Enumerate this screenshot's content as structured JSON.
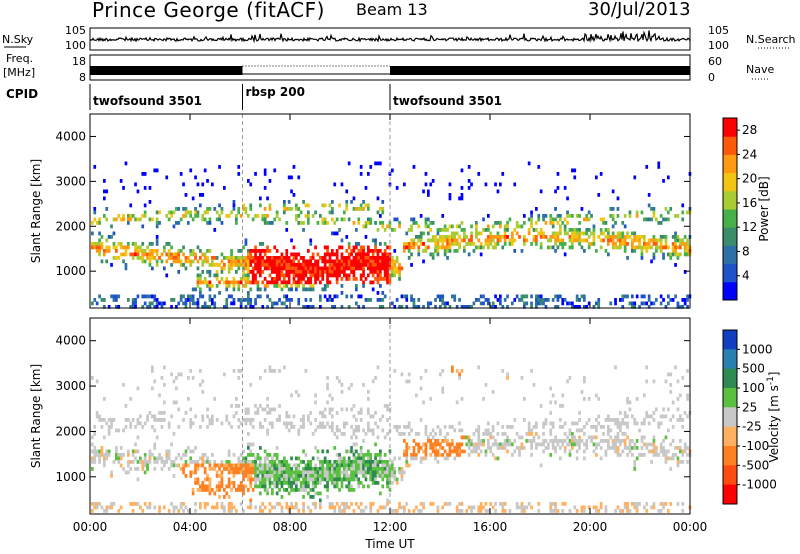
{
  "header": {
    "site": "Prince George (fitACF)",
    "beam": "Beam 13",
    "date": "30/Jul/2013"
  },
  "strip": {
    "nsky_label": "N.Sky",
    "nsearch_label": "N.Search",
    "freq_label_1": "Freq.",
    "freq_label_2": "[MHz]",
    "nave_label": "Nave",
    "cpid_label": "CPID",
    "noise_left_ticks": [
      "10^5",
      "10^0"
    ],
    "noise_right_ticks": [
      "10^5",
      "10^0"
    ],
    "freq_ticks": [
      "18",
      "8"
    ],
    "nave_ticks": [
      "60",
      "0"
    ]
  },
  "cpid_segments": [
    {
      "label": "twofsound 3501",
      "start_hour": 0,
      "end_hour": 6.1
    },
    {
      "label": "rbsp 200",
      "start_hour": 6.1,
      "end_hour": 12.0
    },
    {
      "label": "twofsound 3501",
      "start_hour": 12.0,
      "end_hour": 24
    }
  ],
  "chart_data": [
    {
      "type": "heatmap",
      "panel": "power",
      "ylabel": "Slant Range [km]",
      "yticks": [
        "4000",
        "3000",
        "2000",
        "1000"
      ],
      "ylim": [
        180,
        4500
      ],
      "xlim_hours": [
        0,
        24
      ],
      "colorbar": {
        "label": "Power [dB]",
        "ticks": [
          "28",
          "24",
          "20",
          "16",
          "12",
          "8",
          "4"
        ],
        "range": [
          0,
          30
        ],
        "colors_low_to_high": [
          "#0000ff",
          "#1e52c8",
          "#2e6fa8",
          "#3a8c6a",
          "#48b048",
          "#a8cc33",
          "#f2c414",
          "#ff9a12",
          "#ff5a0a",
          "#ff0000"
        ]
      }
    },
    {
      "type": "heatmap",
      "panel": "velocity",
      "ylabel": "Slant Range [km]",
      "yticks": [
        "4000",
        "3000",
        "2000",
        "1000"
      ],
      "ylim": [
        180,
        4500
      ],
      "xlim_hours": [
        0,
        24
      ],
      "colorbar": {
        "label": "Velocity [m s^-1]",
        "ticks": [
          "1000",
          "500",
          "100",
          "25",
          "-25",
          "-100",
          "-500",
          "-1000"
        ],
        "colors_top_to_bottom": [
          "#1040c0",
          "#2a80b0",
          "#2e8a50",
          "#5ac040",
          "#c8c8c8",
          "#ffb060",
          "#ff8020",
          "#ff4a10",
          "#ff0000"
        ]
      }
    }
  ],
  "xaxis": {
    "label": "Time UT",
    "ticks": [
      "00:00",
      "04:00",
      "08:00",
      "12:00",
      "16:00",
      "20:00",
      "00:00"
    ]
  },
  "colors": {
    "frame": "#000000",
    "grid": "#aaaaaa"
  }
}
